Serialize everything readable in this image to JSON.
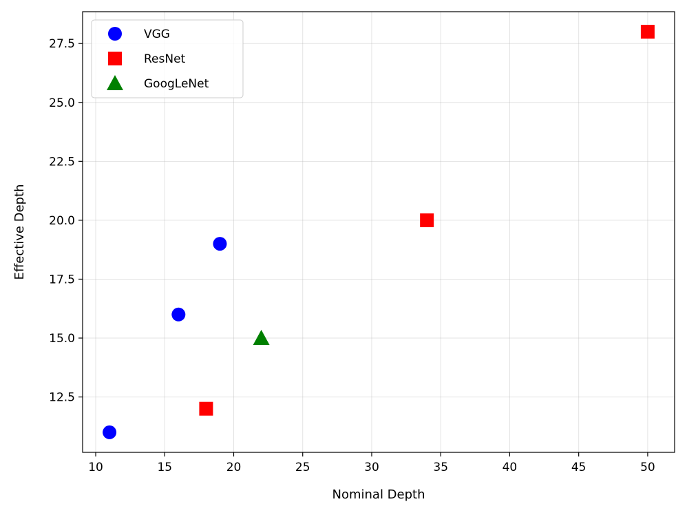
{
  "chart_data": {
    "type": "scatter",
    "title": "",
    "xlabel": "Nominal Depth",
    "ylabel": "Effective Depth",
    "xlim": [
      9.05,
      51.95
    ],
    "ylim": [
      10.15,
      28.85
    ],
    "xticks": [
      10,
      15,
      20,
      25,
      30,
      35,
      40,
      45,
      50
    ],
    "xtick_labels": [
      "10",
      "15",
      "20",
      "25",
      "30",
      "35",
      "40",
      "45",
      "50"
    ],
    "yticks": [
      12.5,
      15.0,
      17.5,
      20.0,
      22.5,
      25.0,
      27.5
    ],
    "ytick_labels": [
      "12.5",
      "15.0",
      "17.5",
      "20.0",
      "22.5",
      "25.0",
      "27.5"
    ],
    "grid": true,
    "legend_position": "top-left",
    "series": [
      {
        "name": "VGG",
        "marker": "circle",
        "color": "#0000ff",
        "points": [
          {
            "x": 11,
            "y": 11
          },
          {
            "x": 16,
            "y": 16
          },
          {
            "x": 19,
            "y": 19
          }
        ]
      },
      {
        "name": "ResNet",
        "marker": "square",
        "color": "#ff0000",
        "points": [
          {
            "x": 18,
            "y": 12
          },
          {
            "x": 34,
            "y": 20
          },
          {
            "x": 50,
            "y": 28
          }
        ]
      },
      {
        "name": "GoogLeNet",
        "marker": "triangle",
        "color": "#008000",
        "points": [
          {
            "x": 22,
            "y": 15
          }
        ]
      }
    ]
  }
}
